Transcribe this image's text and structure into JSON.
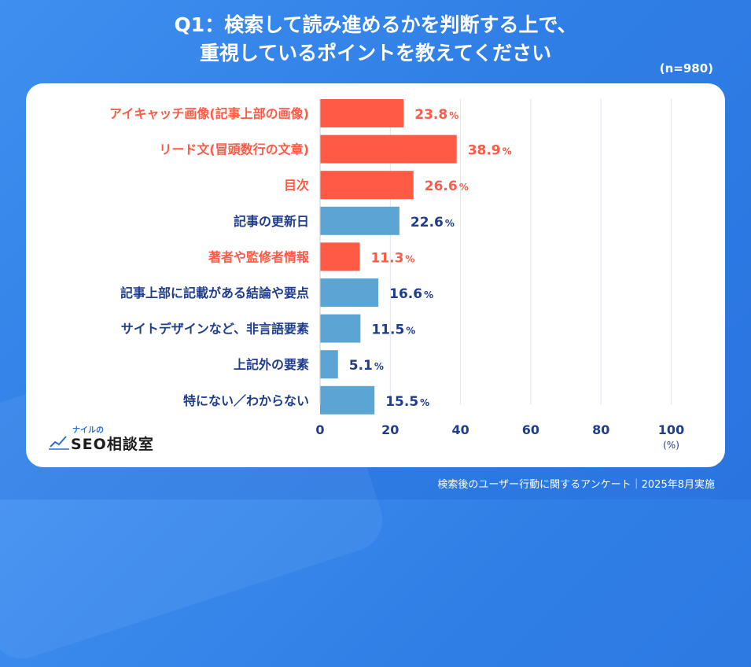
{
  "header": {
    "title_line1": "Q1：検索して読み進めるかを判断する上で、",
    "title_line2": "重視しているポイントを教えてください",
    "sample_size": "(n=980)"
  },
  "logo": {
    "small_text": "ナイルの",
    "main_text": "SEO相談室"
  },
  "footer": {
    "source": "検索後のユーザー行動に関するアンケート｜2025年8月実施"
  },
  "colors": {
    "highlight": "#ff5a46",
    "normal_bar": "#5aa5d4",
    "normal_label": "#1f3d8f",
    "grid": "#dfe3ec"
  },
  "chart_data": {
    "type": "bar",
    "orientation": "horizontal",
    "categories": [
      "アイキャッチ画像(記事上部の画像)",
      "リード文(冒頭数行の文章)",
      "目次",
      "記事の更新日",
      "著者や監修者情報",
      "記事上部に記載がある結論や要点",
      "サイトデザインなど、非言語要素",
      "上記外の要素",
      "特にない／わからない"
    ],
    "values": [
      23.8,
      38.9,
      26.6,
      22.6,
      11.3,
      16.6,
      11.5,
      5.1,
      15.5
    ],
    "highlighted": [
      true,
      true,
      true,
      false,
      true,
      false,
      false,
      false,
      false
    ],
    "value_suffix": "%",
    "xlim": [
      0,
      100
    ],
    "xticks": [
      0,
      20,
      40,
      60,
      80,
      100
    ],
    "xunit": "(%)",
    "grid": true
  }
}
